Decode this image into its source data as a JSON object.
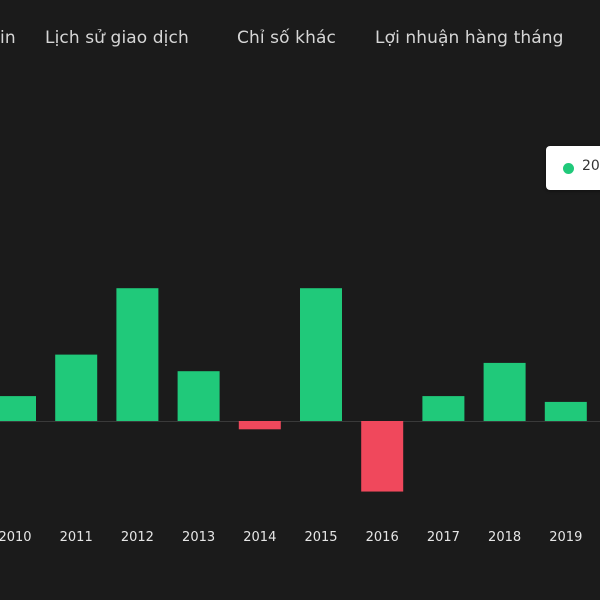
{
  "tabs": [
    {
      "label": "in"
    },
    {
      "label": "Lịch sử giao dịch"
    },
    {
      "label": "Chỉ số khác"
    },
    {
      "label": "Lợi nhuận hàng tháng"
    }
  ],
  "legend": {
    "label": "20",
    "color": "#20c97a"
  },
  "colors": {
    "positive": "#20c97a",
    "negative": "#f0485c",
    "background": "#1b1b1b"
  },
  "chart_data": {
    "type": "bar",
    "categories": [
      "2010",
      "2011",
      "2012",
      "2013",
      "2014",
      "2015",
      "2016",
      "2017",
      "2018",
      "2019"
    ],
    "values": [
      3,
      8,
      16,
      6,
      -1,
      16,
      -8.5,
      3,
      7,
      2.3
    ],
    "title": "",
    "xlabel": "",
    "ylabel": "",
    "ylim": [
      -10,
      28
    ],
    "grid": false,
    "legend_position": "top-right"
  }
}
